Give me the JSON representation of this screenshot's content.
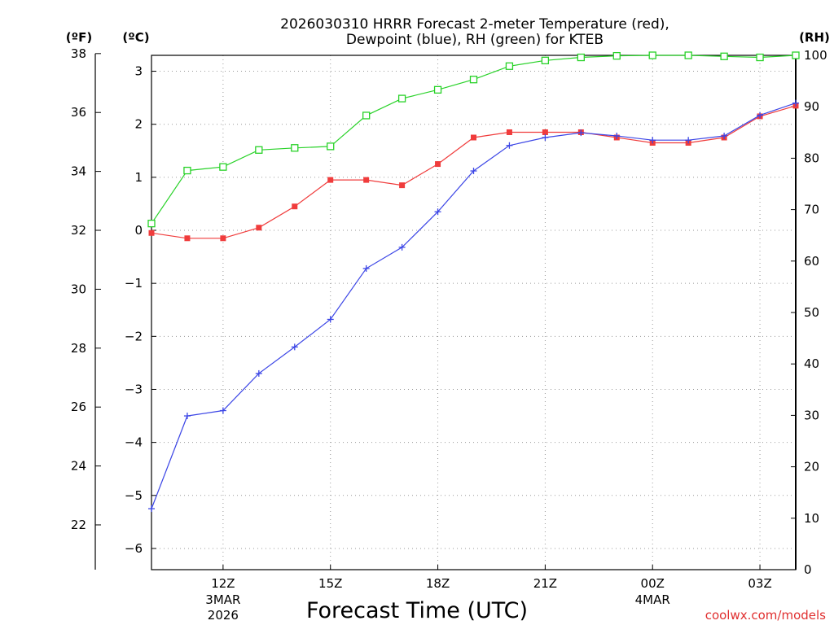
{
  "chart_data": {
    "type": "line",
    "title_lines": [
      "2026030310 HRRR Forecast 2-meter Temperature (red),",
      "Dewpoint (blue), RH (green) for KTEB"
    ],
    "units": {
      "left_outer": "(ºF)",
      "left_inner": "(ºC)",
      "right": "(RH)"
    },
    "xlabel": "Forecast Time (UTC)",
    "credit": "coolwx.com/models",
    "x_hours": [
      0,
      1,
      2,
      3,
      4,
      5,
      6,
      7,
      8,
      9,
      10,
      11,
      12,
      13,
      14,
      15,
      16,
      17,
      18
    ],
    "xlim": [
      0,
      18
    ],
    "x_ticks": [
      {
        "h": 2,
        "label": "12Z",
        "sub": [
          "3MAR",
          "2026"
        ]
      },
      {
        "h": 5,
        "label": "15Z",
        "sub": []
      },
      {
        "h": 8,
        "label": "18Z",
        "sub": []
      },
      {
        "h": 11,
        "label": "21Z",
        "sub": []
      },
      {
        "h": 14,
        "label": "00Z",
        "sub": [
          "4MAR"
        ]
      },
      {
        "h": 17,
        "label": "03Z",
        "sub": []
      }
    ],
    "celsius_axis": {
      "ylim": [
        -6.4,
        3.3
      ],
      "ticks": [
        -6,
        -5,
        -4,
        -3,
        -2,
        -1,
        0,
        1,
        2,
        3
      ]
    },
    "fahrenheit_ticks": [
      22,
      24,
      26,
      28,
      30,
      32,
      34,
      36,
      38
    ],
    "rh_axis": {
      "ylim": [
        0,
        100
      ],
      "ticks": [
        0,
        10,
        20,
        30,
        40,
        50,
        60,
        70,
        80,
        90,
        100
      ]
    },
    "series": [
      {
        "name": "2-meter Temperature",
        "unit": "C",
        "color": "#f03c3c",
        "marker": "filled-square",
        "values": [
          -0.05,
          -0.15,
          -0.15,
          0.05,
          0.45,
          0.95,
          0.95,
          0.85,
          1.25,
          1.75,
          1.85,
          1.85,
          1.85,
          1.75,
          1.65,
          1.65,
          1.75,
          2.15,
          2.35
        ]
      },
      {
        "name": "Dewpoint",
        "unit": "C",
        "color": "#3c46e6",
        "marker": "plus",
        "values": [
          -5.25,
          -3.5,
          -3.4,
          -2.7,
          -2.2,
          -1.68,
          -0.72,
          -0.32,
          0.35,
          1.12,
          1.6,
          1.75,
          1.84,
          1.78,
          1.7,
          1.7,
          1.78,
          2.17,
          2.4
        ]
      },
      {
        "name": "RH",
        "unit": "%",
        "color": "#28d228",
        "marker": "open-square",
        "values": [
          67.3,
          77.6,
          78.3,
          81.6,
          82.0,
          82.3,
          88.3,
          91.6,
          93.3,
          95.3,
          97.9,
          99.0,
          99.6,
          99.9,
          100,
          100,
          99.8,
          99.6,
          100
        ]
      }
    ]
  }
}
